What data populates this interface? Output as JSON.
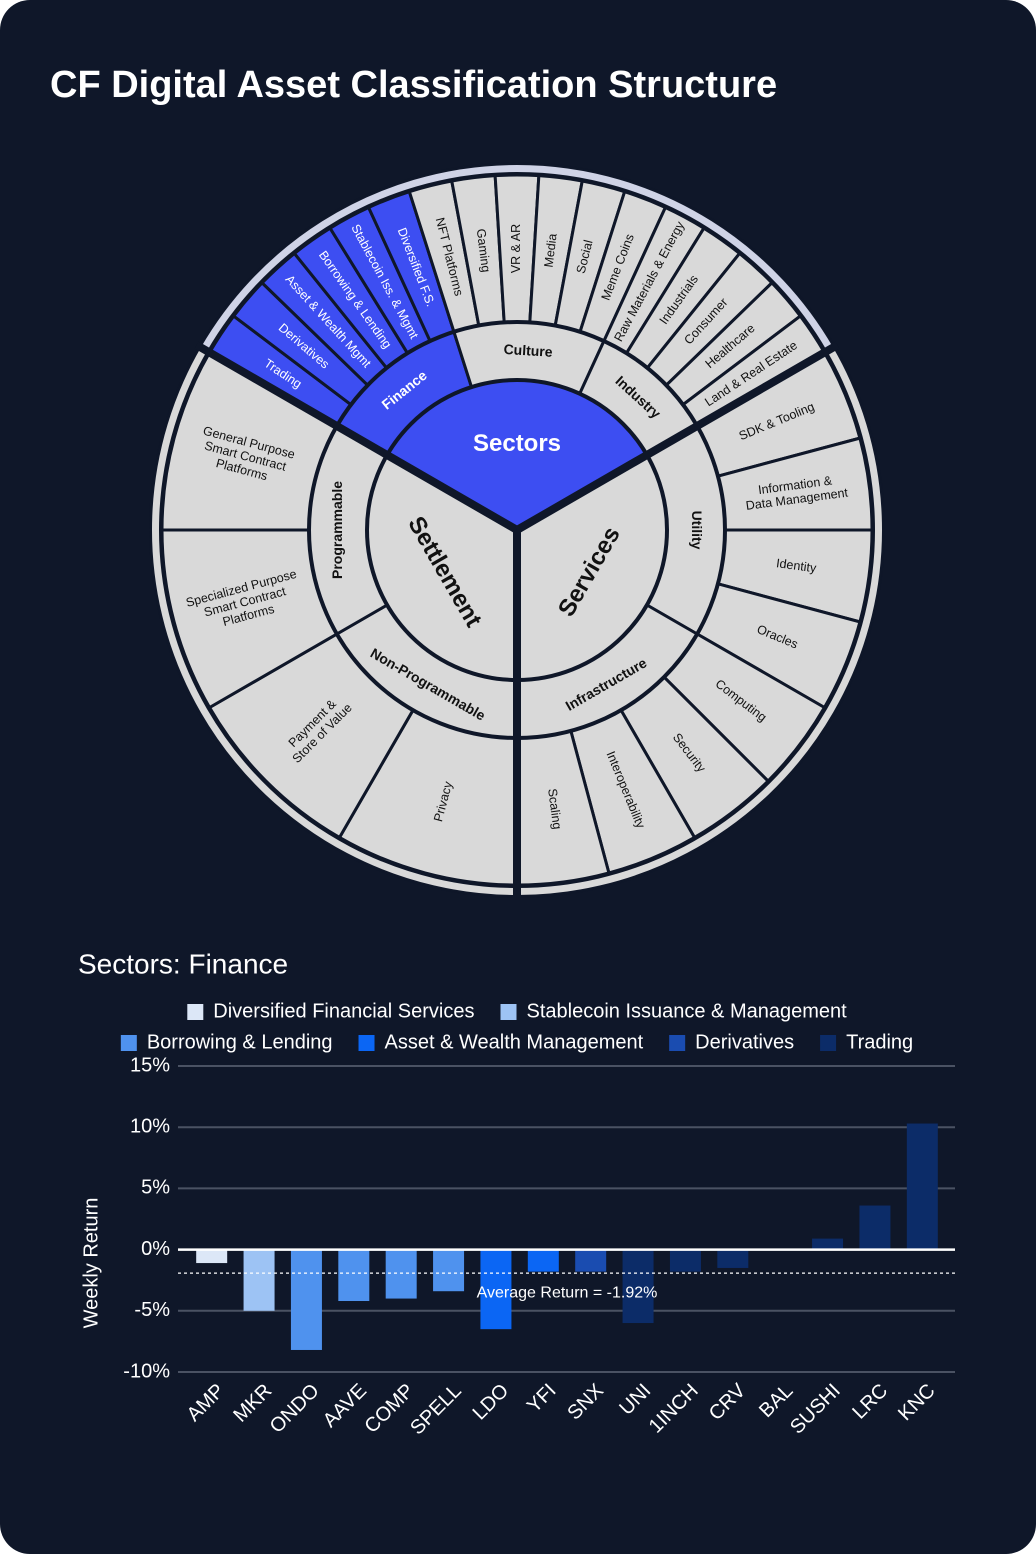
{
  "title": "CF Digital Asset Classification Structure",
  "diagram": {
    "sectors": [
      {
        "label": "Sectors",
        "highlight": true,
        "groups": [
          {
            "label": "Finance",
            "highlight": true,
            "items": [
              [
                "Trading"
              ],
              [
                "Derivatives"
              ],
              [
                "Asset & Wealth Mgmt"
              ],
              [
                "Borrowing & Lending"
              ],
              [
                "Stablecoin Iss. & Mgmt"
              ],
              [
                "Diversified F.S."
              ]
            ]
          },
          {
            "label": "Culture",
            "highlight": false,
            "items": [
              [
                "NFT Platforms"
              ],
              [
                "Gaming"
              ],
              [
                "VR & AR"
              ],
              [
                "Media"
              ],
              [
                "Social"
              ],
              [
                "Meme Coins"
              ]
            ]
          },
          {
            "label": "Industry",
            "highlight": false,
            "items": [
              [
                "Raw Materials & Energy"
              ],
              [
                "Industrials"
              ],
              [
                "Consumer"
              ],
              [
                "Healthcare"
              ],
              [
                "Land & Real Estate"
              ]
            ]
          }
        ]
      },
      {
        "label": "Services",
        "highlight": false,
        "groups": [
          {
            "label": "Utility",
            "highlight": false,
            "items": [
              [
                "SDK & Tooling"
              ],
              [
                "Information &",
                "Data Management"
              ],
              [
                "Identity"
              ],
              [
                "Oracles"
              ]
            ]
          },
          {
            "label": "Infrastructure",
            "highlight": false,
            "items": [
              [
                "Computing"
              ],
              [
                "Security"
              ],
              [
                "Interoperability"
              ],
              [
                "Scaling"
              ]
            ]
          }
        ]
      },
      {
        "label": "Settlement",
        "highlight": false,
        "groups": [
          {
            "label": "Non-Programmable",
            "highlight": false,
            "items": [
              [
                "Privacy"
              ],
              [
                "Payment &",
                "Store of Value"
              ]
            ]
          },
          {
            "label": "Programmable",
            "highlight": false,
            "items": [
              [
                "Specialized Purpose",
                "Smart Contract",
                "Platforms"
              ],
              [
                "General Purpose",
                "Smart Contract",
                "Platforms"
              ]
            ]
          }
        ]
      }
    ]
  },
  "chart_data": {
    "type": "bar",
    "title": "Sectors: Finance",
    "y_label": "Weekly Return",
    "categories": [
      "AMP",
      "MKR",
      "ONDO",
      "AAVE",
      "COMP",
      "SPELL",
      "LDO",
      "YFI",
      "SNX",
      "UNI",
      "1INCH",
      "CRV",
      "BAL",
      "SUSHI",
      "LRC",
      "KNC"
    ],
    "series": [
      {
        "name": "Diversified Financial Services",
        "color": "#dce7f7",
        "values": [
          -1.1,
          null,
          null,
          null,
          null,
          null,
          null,
          null,
          null,
          null,
          null,
          null,
          null,
          null,
          null,
          null
        ]
      },
      {
        "name": "Stablecoin Issuance & Management",
        "color": "#9dc3f4",
        "values": [
          null,
          -5.0,
          null,
          null,
          null,
          null,
          null,
          null,
          null,
          null,
          null,
          null,
          null,
          null,
          null,
          null
        ]
      },
      {
        "name": "Borrowing & Lending",
        "color": "#4f92ee",
        "values": [
          null,
          null,
          -8.2,
          -4.2,
          -4.0,
          -3.4,
          null,
          null,
          null,
          null,
          null,
          null,
          null,
          null,
          null,
          null
        ]
      },
      {
        "name": "Asset & Wealth Management",
        "color": "#0b66f4",
        "values": [
          null,
          null,
          null,
          null,
          null,
          null,
          -6.5,
          -1.8,
          null,
          null,
          null,
          null,
          null,
          null,
          null,
          null
        ]
      },
      {
        "name": "Derivatives",
        "color": "#1a4cb0",
        "values": [
          null,
          null,
          null,
          null,
          null,
          null,
          null,
          null,
          -1.8,
          null,
          null,
          null,
          null,
          null,
          null,
          null
        ]
      },
      {
        "name": "Trading",
        "color": "#0c2c68",
        "values": [
          null,
          null,
          null,
          null,
          null,
          null,
          null,
          null,
          null,
          -6.0,
          -1.8,
          -1.5,
          0.0,
          0.9,
          3.6,
          10.3
        ]
      }
    ],
    "ylim": [
      -10,
      15
    ],
    "yticks": [
      {
        "value": -10,
        "label": "-10%"
      },
      {
        "value": -5,
        "label": "-5%"
      },
      {
        "value": 0,
        "label": "0%"
      },
      {
        "value": 5,
        "label": "5%"
      },
      {
        "value": 10,
        "label": "10%"
      },
      {
        "value": 15,
        "label": "15%"
      }
    ],
    "grid": true,
    "reference_line": {
      "value": -1.92,
      "label": "Average Return = -1.92%"
    }
  }
}
